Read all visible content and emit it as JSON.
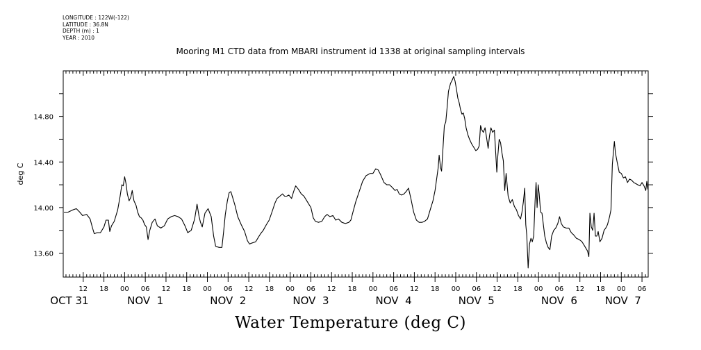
{
  "metadata": {
    "lines": [
      "LONGITUDE : 122W(-122)",
      "LATITUDE : 36.8N",
      "DEPTH (m) : 1",
      "YEAR : 2010"
    ]
  },
  "chart_data": {
    "type": "line",
    "title": "Mooring M1 CTD data from MBARI instrument id 1338 at original sampling intervals",
    "xlabel": "Water Temperature (deg C)",
    "ylabel": "deg C",
    "x_unit": "hours since OCT 31 00:00",
    "xlim": [
      6.2,
      175.8
    ],
    "ylim": [
      13.39,
      15.2
    ],
    "y_ticks": [
      13.6,
      13.8,
      14.0,
      14.2,
      14.4,
      14.6,
      14.8,
      15.0
    ],
    "y_tick_labels": [
      {
        "value": 13.6,
        "label": "13.60"
      },
      {
        "value": 14.0,
        "label": "14.00"
      },
      {
        "value": 14.4,
        "label": "14.40"
      },
      {
        "value": 14.8,
        "label": "14.80"
      }
    ],
    "x_hour_ticks": [
      {
        "x": 12,
        "label": "12"
      },
      {
        "x": 18,
        "label": "18"
      },
      {
        "x": 24,
        "label": "00"
      },
      {
        "x": 30,
        "label": "06"
      },
      {
        "x": 36,
        "label": "12"
      },
      {
        "x": 42,
        "label": "18"
      },
      {
        "x": 48,
        "label": "00"
      },
      {
        "x": 54,
        "label": "06"
      },
      {
        "x": 60,
        "label": "12"
      },
      {
        "x": 66,
        "label": "18"
      },
      {
        "x": 72,
        "label": "00"
      },
      {
        "x": 78,
        "label": "06"
      },
      {
        "x": 84,
        "label": "12"
      },
      {
        "x": 90,
        "label": "18"
      },
      {
        "x": 96,
        "label": "00"
      },
      {
        "x": 102,
        "label": "06"
      },
      {
        "x": 108,
        "label": "12"
      },
      {
        "x": 114,
        "label": "18"
      },
      {
        "x": 120,
        "label": "00"
      },
      {
        "x": 126,
        "label": "06"
      },
      {
        "x": 132,
        "label": "12"
      },
      {
        "x": 138,
        "label": "18"
      },
      {
        "x": 144,
        "label": "00"
      },
      {
        "x": 150,
        "label": "06"
      },
      {
        "x": 156,
        "label": "12"
      },
      {
        "x": 162,
        "label": "18"
      },
      {
        "x": 168,
        "label": "00"
      },
      {
        "x": 174,
        "label": "06"
      }
    ],
    "x_day_labels": [
      {
        "x": 8,
        "label": "OCT 31"
      },
      {
        "x": 30,
        "label": "NOV  1"
      },
      {
        "x": 54,
        "label": "NOV  2"
      },
      {
        "x": 78,
        "label": "NOV  3"
      },
      {
        "x": 102,
        "label": "NOV  4"
      },
      {
        "x": 126,
        "label": "NOV  5"
      },
      {
        "x": 150,
        "label": "NOV  6"
      },
      {
        "x": 168.5,
        "label": "NOV  7"
      }
    ],
    "series": [
      {
        "color": "#000000",
        "points": [
          [
            6.4,
            13.96
          ],
          [
            7.6,
            13.96
          ],
          [
            9,
            13.98
          ],
          [
            10,
            13.99
          ],
          [
            11,
            13.96
          ],
          [
            11.8,
            13.93
          ],
          [
            13,
            13.94
          ],
          [
            14,
            13.9
          ],
          [
            14.7,
            13.82
          ],
          [
            15.2,
            13.77
          ],
          [
            16,
            13.78
          ],
          [
            17,
            13.78
          ],
          [
            18,
            13.83
          ],
          [
            18.6,
            13.89
          ],
          [
            19.3,
            13.89
          ],
          [
            19.7,
            13.79
          ],
          [
            20.2,
            13.84
          ],
          [
            21,
            13.88
          ],
          [
            22,
            13.98
          ],
          [
            22.7,
            14.1
          ],
          [
            23.2,
            14.2
          ],
          [
            23.6,
            14.19
          ],
          [
            24,
            14.27
          ],
          [
            24.4,
            14.21
          ],
          [
            24.8,
            14.12
          ],
          [
            25.3,
            14.06
          ],
          [
            25.8,
            14.09
          ],
          [
            26.2,
            14.15
          ],
          [
            26.7,
            14.06
          ],
          [
            27.3,
            14.02
          ],
          [
            27.8,
            13.96
          ],
          [
            28.3,
            13.92
          ],
          [
            28.8,
            13.91
          ],
          [
            29.3,
            13.89
          ],
          [
            29.8,
            13.85
          ],
          [
            30.3,
            13.83
          ],
          [
            30.8,
            13.72
          ],
          [
            31.3,
            13.8
          ],
          [
            32,
            13.87
          ],
          [
            32.8,
            13.9
          ],
          [
            33.5,
            13.84
          ],
          [
            34.5,
            13.82
          ],
          [
            35.5,
            13.84
          ],
          [
            36.5,
            13.9
          ],
          [
            37.5,
            13.92
          ],
          [
            38.5,
            13.93
          ],
          [
            39.5,
            13.92
          ],
          [
            40.5,
            13.9
          ],
          [
            41.5,
            13.84
          ],
          [
            42.3,
            13.78
          ],
          [
            43.3,
            13.8
          ],
          [
            44.3,
            13.9
          ],
          [
            45,
            14.03
          ],
          [
            45.6,
            13.92
          ],
          [
            46,
            13.87
          ],
          [
            46.5,
            13.83
          ],
          [
            47.3,
            13.95
          ],
          [
            48.2,
            13.99
          ],
          [
            49.1,
            13.92
          ],
          [
            49.8,
            13.75
          ],
          [
            50.4,
            13.66
          ],
          [
            51.4,
            13.65
          ],
          [
            52.2,
            13.65
          ],
          [
            52.7,
            13.79
          ],
          [
            53.2,
            13.94
          ],
          [
            53.8,
            14.06
          ],
          [
            54.3,
            14.13
          ],
          [
            54.8,
            14.14
          ],
          [
            55.4,
            14.08
          ],
          [
            56,
            14.02
          ],
          [
            56.8,
            13.92
          ],
          [
            57.8,
            13.85
          ],
          [
            58.8,
            13.79
          ],
          [
            59.6,
            13.71
          ],
          [
            60.2,
            13.68
          ],
          [
            61,
            13.69
          ],
          [
            62,
            13.7
          ],
          [
            62.6,
            13.73
          ],
          [
            63.4,
            13.77
          ],
          [
            64.2,
            13.8
          ],
          [
            65.1,
            13.85
          ],
          [
            65.9,
            13.89
          ],
          [
            66.7,
            13.96
          ],
          [
            67.6,
            14.04
          ],
          [
            68.2,
            14.08
          ],
          [
            69,
            14.1
          ],
          [
            69.8,
            14.12
          ],
          [
            70.4,
            14.1
          ],
          [
            71,
            14.1
          ],
          [
            71.6,
            14.11
          ],
          [
            72.4,
            14.08
          ],
          [
            73,
            14.14
          ],
          [
            73.6,
            14.19
          ],
          [
            74.4,
            14.16
          ],
          [
            75.2,
            14.12
          ],
          [
            76,
            14.1
          ],
          [
            77,
            14.05
          ],
          [
            78,
            14
          ],
          [
            78.7,
            13.91
          ],
          [
            79.3,
            13.88
          ],
          [
            80.2,
            13.87
          ],
          [
            81.2,
            13.88
          ],
          [
            82,
            13.92
          ],
          [
            82.7,
            13.94
          ],
          [
            83.5,
            13.92
          ],
          [
            84.4,
            13.93
          ],
          [
            85.2,
            13.89
          ],
          [
            86,
            13.9
          ],
          [
            87,
            13.87
          ],
          [
            88,
            13.86
          ],
          [
            89,
            13.87
          ],
          [
            89.6,
            13.89
          ],
          [
            90.2,
            13.96
          ],
          [
            91,
            14.05
          ],
          [
            92,
            14.14
          ],
          [
            93,
            14.23
          ],
          [
            94,
            14.28
          ],
          [
            95.2,
            14.3
          ],
          [
            96,
            14.3
          ],
          [
            96.8,
            14.34
          ],
          [
            97.5,
            14.33
          ],
          [
            98.2,
            14.29
          ],
          [
            99.2,
            14.22
          ],
          [
            100,
            14.2
          ],
          [
            100.8,
            14.2
          ],
          [
            101.5,
            14.18
          ],
          [
            102.4,
            14.15
          ],
          [
            103,
            14.16
          ],
          [
            103.6,
            14.12
          ],
          [
            104.3,
            14.11
          ],
          [
            105,
            14.12
          ],
          [
            105.6,
            14.14
          ],
          [
            106.3,
            14.17
          ],
          [
            107,
            14.08
          ],
          [
            107.8,
            13.96
          ],
          [
            108.6,
            13.89
          ],
          [
            109.4,
            13.87
          ],
          [
            110.2,
            13.87
          ],
          [
            111,
            13.88
          ],
          [
            111.8,
            13.9
          ],
          [
            112.6,
            13.98
          ],
          [
            113.4,
            14.06
          ],
          [
            114,
            14.15
          ],
          [
            114.5,
            14.26
          ],
          [
            114.9,
            14.35
          ],
          [
            115.2,
            14.46
          ],
          [
            115.6,
            14.35
          ],
          [
            115.9,
            14.32
          ],
          [
            116.3,
            14.52
          ],
          [
            116.7,
            14.72
          ],
          [
            117.1,
            14.75
          ],
          [
            117.5,
            14.88
          ],
          [
            117.9,
            15.02
          ],
          [
            118.5,
            15.09
          ],
          [
            119,
            15.12
          ],
          [
            119.4,
            15.15
          ],
          [
            119.8,
            15.11
          ],
          [
            120.2,
            15.04
          ],
          [
            120.6,
            14.96
          ],
          [
            121,
            14.92
          ],
          [
            121.4,
            14.86
          ],
          [
            121.8,
            14.82
          ],
          [
            122.2,
            14.83
          ],
          [
            122.6,
            14.78
          ],
          [
            123,
            14.7
          ],
          [
            123.5,
            14.64
          ],
          [
            124,
            14.6
          ],
          [
            124.6,
            14.56
          ],
          [
            125.2,
            14.53
          ],
          [
            125.8,
            14.5
          ],
          [
            126.3,
            14.51
          ],
          [
            126.8,
            14.54
          ],
          [
            127.2,
            14.72
          ],
          [
            127.6,
            14.68
          ],
          [
            128,
            14.66
          ],
          [
            128.5,
            14.7
          ],
          [
            129,
            14.6
          ],
          [
            129.4,
            14.52
          ],
          [
            129.8,
            14.63
          ],
          [
            130.2,
            14.7
          ],
          [
            130.7,
            14.66
          ],
          [
            131.2,
            14.68
          ],
          [
            131.6,
            14.47
          ],
          [
            131.9,
            14.31
          ],
          [
            132.2,
            14.45
          ],
          [
            132.6,
            14.6
          ],
          [
            133,
            14.57
          ],
          [
            133.4,
            14.48
          ],
          [
            133.8,
            14.41
          ],
          [
            134.2,
            14.15
          ],
          [
            134.6,
            14.3
          ],
          [
            135.2,
            14.1
          ],
          [
            135.8,
            14.04
          ],
          [
            136.4,
            14.07
          ],
          [
            137,
            14.01
          ],
          [
            137.6,
            13.98
          ],
          [
            138.2,
            13.93
          ],
          [
            138.8,
            13.9
          ],
          [
            139.2,
            13.96
          ],
          [
            139.6,
            14.05
          ],
          [
            140,
            14.17
          ],
          [
            140.3,
            13.85
          ],
          [
            140.6,
            13.76
          ],
          [
            141,
            13.47
          ],
          [
            141.4,
            13.68
          ],
          [
            141.8,
            13.73
          ],
          [
            142.2,
            13.7
          ],
          [
            142.6,
            13.75
          ],
          [
            143,
            14.06
          ],
          [
            143.3,
            14.22
          ],
          [
            143.6,
            14.0
          ],
          [
            143.9,
            14.2
          ],
          [
            144.2,
            14.12
          ],
          [
            144.6,
            13.96
          ],
          [
            145,
            13.95
          ],
          [
            145.4,
            13.85
          ],
          [
            145.8,
            13.75
          ],
          [
            146.3,
            13.69
          ],
          [
            146.8,
            13.65
          ],
          [
            147.3,
            13.63
          ],
          [
            147.8,
            13.75
          ],
          [
            148.4,
            13.8
          ],
          [
            149,
            13.82
          ],
          [
            149.6,
            13.86
          ],
          [
            150.1,
            13.92
          ],
          [
            150.6,
            13.86
          ],
          [
            151.2,
            13.83
          ],
          [
            152,
            13.82
          ],
          [
            152.8,
            13.82
          ],
          [
            153.5,
            13.78
          ],
          [
            154.2,
            13.76
          ],
          [
            155,
            13.73
          ],
          [
            155.8,
            13.72
          ],
          [
            156.6,
            13.7
          ],
          [
            157.4,
            13.66
          ],
          [
            158.2,
            13.62
          ],
          [
            158.6,
            13.57
          ],
          [
            158.9,
            13.95
          ],
          [
            159.3,
            13.83
          ],
          [
            159.7,
            13.8
          ],
          [
            160.1,
            13.95
          ],
          [
            160.5,
            13.75
          ],
          [
            160.9,
            13.75
          ],
          [
            161.3,
            13.79
          ],
          [
            161.8,
            13.7
          ],
          [
            162.4,
            13.73
          ],
          [
            163,
            13.8
          ],
          [
            163.5,
            13.82
          ],
          [
            164,
            13.85
          ],
          [
            164.6,
            13.92
          ],
          [
            165,
            13.98
          ],
          [
            165.4,
            14.38
          ],
          [
            165.8,
            14.52
          ],
          [
            166,
            14.58
          ],
          [
            166.3,
            14.48
          ],
          [
            166.8,
            14.4
          ],
          [
            167.4,
            14.31
          ],
          [
            168,
            14.3
          ],
          [
            168.6,
            14.26
          ],
          [
            169.2,
            14.27
          ],
          [
            169.8,
            14.22
          ],
          [
            170.4,
            14.25
          ],
          [
            171,
            14.24
          ],
          [
            171.6,
            14.22
          ],
          [
            172.2,
            14.21
          ],
          [
            172.8,
            14.2
          ],
          [
            173.4,
            14.19
          ],
          [
            174,
            14.22
          ],
          [
            174.6,
            14.19
          ],
          [
            175.1,
            14.15
          ],
          [
            175.4,
            14.23
          ],
          [
            175.7,
            14.16
          ]
        ]
      }
    ]
  }
}
